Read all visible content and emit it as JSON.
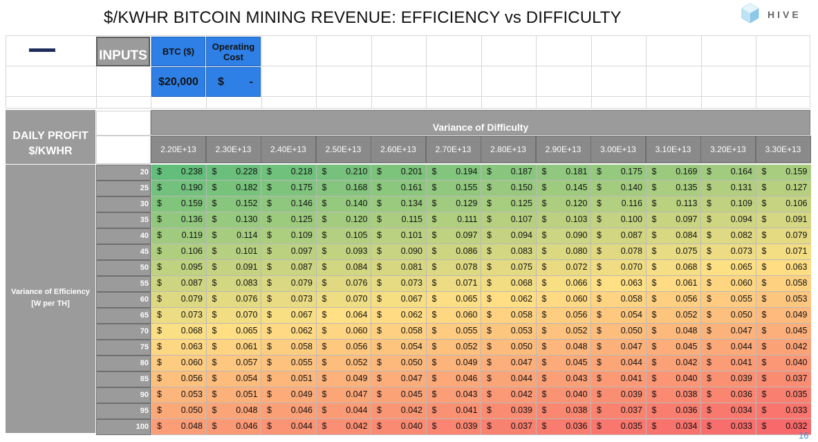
{
  "title": "$/KWHR BITCOIN MINING REVENUE: EFFICIENCY vs DIFFICULTY",
  "brand": "HIVE",
  "page_number": "16",
  "inputs": {
    "label": "INPUTS",
    "btc_header": "BTC ($)",
    "btc_value": "$20,000",
    "opcost_header": "Operating Cost",
    "opcost_currency": "$",
    "opcost_value": "-"
  },
  "table": {
    "corner_label_line1": "DAILY PROFIT",
    "corner_label_line2": "$/KWHR",
    "column_group_label": "Variance of Difficulty",
    "row_group_label_line1": "Variance of Efficiency",
    "row_group_label_line2": "[W per TH]",
    "currency_symbol": "$",
    "columns": [
      "2.20E+13",
      "2.30E+13",
      "2.40E+13",
      "2.50E+13",
      "2.60E+13",
      "2.70E+13",
      "2.80E+13",
      "2.90E+13",
      "3.00E+13",
      "3.10E+13",
      "3.20E+13",
      "3.30E+13"
    ],
    "rows": [
      "20",
      "25",
      "30",
      "35",
      "40",
      "45",
      "50",
      "55",
      "60",
      "65",
      "70",
      "75",
      "80",
      "85",
      "90",
      "95",
      "100"
    ],
    "values": [
      [
        "0.238",
        "0.228",
        "0.218",
        "0.210",
        "0.201",
        "0.194",
        "0.187",
        "0.181",
        "0.175",
        "0.169",
        "0.164",
        "0.159"
      ],
      [
        "0.190",
        "0.182",
        "0.175",
        "0.168",
        "0.161",
        "0.155",
        "0.150",
        "0.145",
        "0.140",
        "0.135",
        "0.131",
        "0.127"
      ],
      [
        "0.159",
        "0.152",
        "0.146",
        "0.140",
        "0.134",
        "0.129",
        "0.125",
        "0.120",
        "0.116",
        "0.113",
        "0.109",
        "0.106"
      ],
      [
        "0.136",
        "0.130",
        "0.125",
        "0.120",
        "0.115",
        "0.111",
        "0.107",
        "0.103",
        "0.100",
        "0.097",
        "0.094",
        "0.091"
      ],
      [
        "0.119",
        "0.114",
        "0.109",
        "0.105",
        "0.101",
        "0.097",
        "0.094",
        "0.090",
        "0.087",
        "0.084",
        "0.082",
        "0.079"
      ],
      [
        "0.106",
        "0.101",
        "0.097",
        "0.093",
        "0.090",
        "0.086",
        "0.083",
        "0.080",
        "0.078",
        "0.075",
        "0.073",
        "0.071"
      ],
      [
        "0.095",
        "0.091",
        "0.087",
        "0.084",
        "0.081",
        "0.078",
        "0.075",
        "0.072",
        "0.070",
        "0.068",
        "0.065",
        "0.063"
      ],
      [
        "0.087",
        "0.083",
        "0.079",
        "0.076",
        "0.073",
        "0.071",
        "0.068",
        "0.066",
        "0.063",
        "0.061",
        "0.060",
        "0.058"
      ],
      [
        "0.079",
        "0.076",
        "0.073",
        "0.070",
        "0.067",
        "0.065",
        "0.062",
        "0.060",
        "0.058",
        "0.056",
        "0.055",
        "0.053"
      ],
      [
        "0.073",
        "0.070",
        "0.067",
        "0.064",
        "0.062",
        "0.060",
        "0.058",
        "0.056",
        "0.054",
        "0.052",
        "0.050",
        "0.049"
      ],
      [
        "0.068",
        "0.065",
        "0.062",
        "0.060",
        "0.058",
        "0.055",
        "0.053",
        "0.052",
        "0.050",
        "0.048",
        "0.047",
        "0.045"
      ],
      [
        "0.063",
        "0.061",
        "0.058",
        "0.056",
        "0.054",
        "0.052",
        "0.050",
        "0.048",
        "0.047",
        "0.045",
        "0.044",
        "0.042"
      ],
      [
        "0.060",
        "0.057",
        "0.055",
        "0.052",
        "0.050",
        "0.049",
        "0.047",
        "0.045",
        "0.044",
        "0.042",
        "0.041",
        "0.040"
      ],
      [
        "0.056",
        "0.054",
        "0.051",
        "0.049",
        "0.047",
        "0.046",
        "0.044",
        "0.043",
        "0.041",
        "0.040",
        "0.039",
        "0.037"
      ],
      [
        "0.053",
        "0.051",
        "0.049",
        "0.047",
        "0.045",
        "0.043",
        "0.042",
        "0.040",
        "0.039",
        "0.038",
        "0.036",
        "0.035"
      ],
      [
        "0.050",
        "0.048",
        "0.046",
        "0.044",
        "0.042",
        "0.041",
        "0.039",
        "0.038",
        "0.037",
        "0.036",
        "0.034",
        "0.033"
      ],
      [
        "0.048",
        "0.046",
        "0.044",
        "0.042",
        "0.040",
        "0.039",
        "0.037",
        "0.036",
        "0.035",
        "0.034",
        "0.033",
        "0.032"
      ]
    ]
  },
  "colors": {
    "header_gray": "#9b9b9b",
    "input_blue": "#2f80e6",
    "heat_high": "#63be7b",
    "heat_mid": "#ffe084",
    "heat_low": "#f8696b",
    "page_number": "#4a8cc7"
  }
}
